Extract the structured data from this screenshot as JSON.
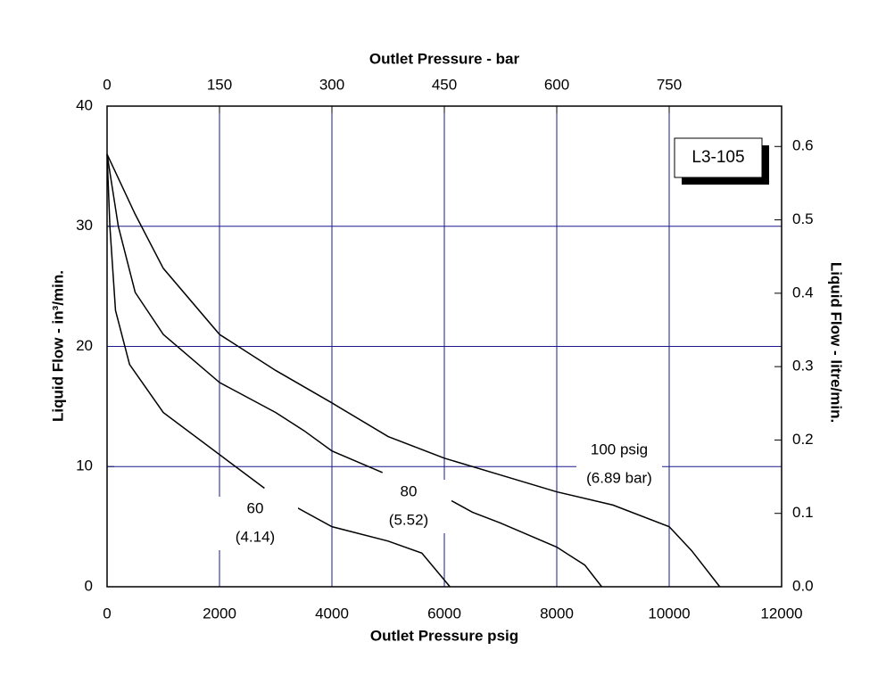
{
  "chart_data": {
    "type": "line",
    "xlabel": "Outlet Pressure psig",
    "x2label": "Outlet Pressure - bar",
    "ylabel": "Liquid Flow - in³/min.",
    "y2label": "Liquid Flow - litre/min.",
    "xlim": [
      0,
      12000
    ],
    "xticks": [
      0,
      2000,
      4000,
      6000,
      8000,
      10000,
      12000
    ],
    "x2lim": [
      0,
      900
    ],
    "x2ticks": [
      0,
      150,
      300,
      450,
      600,
      750
    ],
    "ylim": [
      0,
      40
    ],
    "yticks": [
      0,
      10,
      20,
      30,
      40
    ],
    "y2lim": [
      0,
      0.655
    ],
    "y2ticks": [
      {
        "value": 0,
        "label": "0.0"
      },
      0.1,
      0.2,
      0.3,
      0.4,
      0.5,
      0.6
    ],
    "grid": true,
    "grid_color": "#1a1a8c",
    "annotation": "L3-105",
    "series": [
      {
        "name": "100 psig",
        "bar_label": "(6.89 bar)",
        "color": "#000000",
        "x": [
          0,
          500,
          1000,
          2000,
          3000,
          4000,
          5000,
          6000,
          7000,
          8000,
          9000,
          10000,
          10400,
          10900
        ],
        "values": [
          36,
          31,
          26.5,
          21,
          18,
          15.3,
          12.5,
          10.7,
          9.3,
          7.9,
          6.8,
          5,
          3,
          0
        ]
      },
      {
        "name": "80",
        "bar_label": "(5.52)",
        "color": "#000000",
        "x": [
          0,
          200,
          500,
          1000,
          2000,
          3000,
          3500,
          4000,
          4900,
          5300,
          5800,
          6500,
          7000,
          8000,
          8500,
          8800
        ],
        "values": [
          36,
          30,
          24.5,
          21,
          17,
          14.5,
          13,
          11.3,
          9.5,
          null,
          8,
          6.2,
          5.3,
          3.3,
          1.8,
          0
        ]
      },
      {
        "name": "60",
        "bar_label": "(4.14)",
        "color": "#000000",
        "x": [
          0,
          50,
          150,
          400,
          1000,
          2000,
          2800,
          2950,
          3100,
          4000,
          5000,
          5600,
          6100
        ],
        "values": [
          36,
          30,
          23,
          18.5,
          14.5,
          11,
          8.2,
          null,
          7.3,
          5,
          3.8,
          2.8,
          0
        ]
      }
    ]
  }
}
